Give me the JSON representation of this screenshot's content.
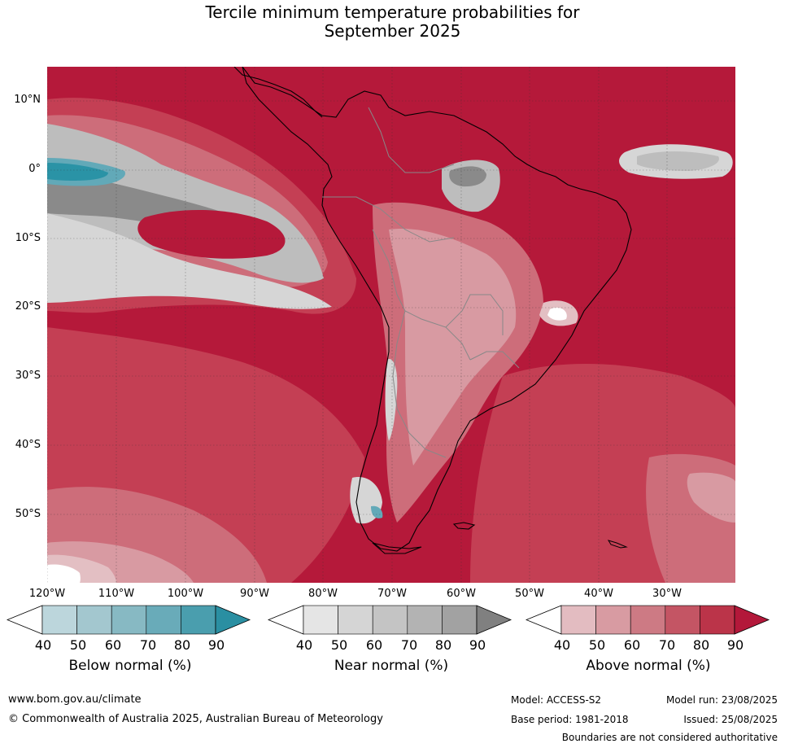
{
  "title_line1": "Tercile minimum temperature probabilities for",
  "title_line2": "September 2025",
  "map": {
    "lat_labels": [
      "10°N",
      "0°",
      "10°S",
      "20°S",
      "30°S",
      "40°S",
      "50°S"
    ],
    "lon_labels": [
      "120°W",
      "110°W",
      "100°W",
      "90°W",
      "80°W",
      "70°W",
      "60°W",
      "50°W",
      "40°W",
      "30°W"
    ],
    "colors": {
      "above_90": "#b5193a",
      "above_80": "#c43f54",
      "above_70": "#cd6d7a",
      "above_60": "#d89aa2",
      "above_50": "#e3bfc3",
      "near_50": "#d6d6d6",
      "near_60": "#bdbdbd",
      "near_80": "#8a8a8a",
      "below_70": "#62a9b8",
      "below_80": "#2a93a6",
      "white": "#ffffff"
    }
  },
  "colorbars": [
    {
      "name": "below",
      "title": "Below normal (%)",
      "ticks": [
        "40",
        "50",
        "60",
        "70",
        "80",
        "90"
      ],
      "colors": [
        "#ffffff",
        "#bcd6dc",
        "#a3c7cf",
        "#87b9c3",
        "#69abb9",
        "#4a9eae",
        "#2a8fa2"
      ]
    },
    {
      "name": "near",
      "title": "Near normal (%)",
      "ticks": [
        "40",
        "50",
        "60",
        "70",
        "80",
        "90"
      ],
      "colors": [
        "#ffffff",
        "#e5e5e5",
        "#d5d5d5",
        "#c4c4c4",
        "#b3b3b3",
        "#a2a2a2",
        "#808080"
      ]
    },
    {
      "name": "above",
      "title": "Above normal (%)",
      "ticks": [
        "40",
        "50",
        "60",
        "70",
        "80",
        "90"
      ],
      "colors": [
        "#ffffff",
        "#e3bcc1",
        "#d89ba2",
        "#cd7a84",
        "#c45564",
        "#bb3449",
        "#b3183a"
      ]
    }
  ],
  "footer": {
    "website": "www.bom.gov.au/climate",
    "copyright": "© Commonwealth of Australia 2025, Australian Bureau of Meteorology",
    "model": "Model: ACCESS-S2",
    "base_period": "Base period: 1981-2018",
    "model_run": "Model run: 23/08/2025",
    "issued": "Issued: 25/08/2025",
    "disclaimer": "Boundaries are not considered authoritative"
  }
}
